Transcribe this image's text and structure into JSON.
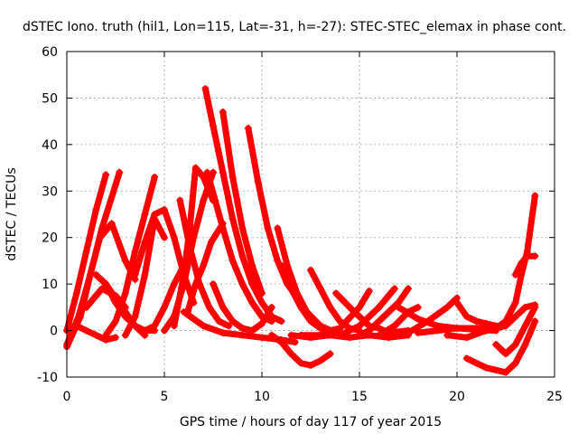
{
  "chart_data": {
    "type": "scatter",
    "title": "dSTEC Iono. truth (hil1, Lon=115, Lat=-31, h=-27): STEC-STEC_elemax in phase cont.",
    "xlabel": "GPS time / hours of day 117 of year 2015",
    "ylabel": "dSTEC  / TECUs",
    "xlim": [
      0,
      25
    ],
    "ylim": [
      -10,
      60
    ],
    "xticks": [
      0,
      5,
      10,
      15,
      20,
      25
    ],
    "yticks": [
      -10,
      0,
      10,
      20,
      30,
      40,
      50,
      60
    ],
    "grid": true,
    "color": "#ff0000",
    "marker": "plus",
    "series": [
      {
        "x": [
          0.0,
          0.5,
          1.0,
          1.5,
          2.0
        ],
        "y": [
          0.0,
          8.0,
          17.0,
          26.0,
          33.5
        ]
      },
      {
        "x": [
          0.0,
          0.6,
          1.2,
          1.8,
          2.7
        ],
        "y": [
          -3.0,
          3.0,
          12.0,
          22.0,
          34.0
        ]
      },
      {
        "x": [
          0.0,
          0.7,
          1.2,
          1.7,
          2.3,
          3.0,
          3.5
        ],
        "y": [
          -3.5,
          3.0,
          12.0,
          20.0,
          23.0,
          15.0,
          11.0
        ]
      },
      {
        "x": [
          1.5,
          2.0,
          2.5,
          3.0,
          3.5,
          4.0
        ],
        "y": [
          12.0,
          10.0,
          7.0,
          4.0,
          1.0,
          -1.0
        ]
      },
      {
        "x": [
          2.0,
          2.5,
          3.0,
          3.5,
          4.0,
          4.5
        ],
        "y": [
          10.0,
          6.0,
          3.0,
          1.0,
          0.0,
          0.0
        ]
      },
      {
        "x": [
          0.0,
          0.5,
          1.0,
          1.5,
          2.0,
          2.5
        ],
        "y": [
          0.0,
          1.0,
          0.0,
          -1.0,
          -2.0,
          -1.5
        ]
      },
      {
        "x": [
          1.0,
          1.8,
          2.5,
          3.0
        ],
        "y": [
          5.0,
          9.0,
          7.5,
          5.0
        ]
      },
      {
        "x": [
          2.0,
          2.5,
          3.0,
          3.5,
          4.0,
          4.5
        ],
        "y": [
          -1.0,
          2.0,
          8.0,
          17.0,
          25.0,
          33.0
        ]
      },
      {
        "x": [
          3.0,
          3.5,
          4.0,
          4.5,
          5.0
        ],
        "y": [
          -1.0,
          3.0,
          12.0,
          24.0,
          20.0
        ]
      },
      {
        "x": [
          3.5,
          4.0,
          4.5,
          5.0,
          5.5,
          6.0,
          6.5
        ],
        "y": [
          12.0,
          19.0,
          25.0,
          26.0,
          20.0,
          12.0,
          6.0
        ]
      },
      {
        "x": [
          4.0,
          4.5,
          5.0,
          5.5,
          6.0
        ],
        "y": [
          0.0,
          1.0,
          5.0,
          10.0,
          14.0
        ]
      },
      {
        "x": [
          5.0,
          5.5,
          6.0,
          6.5,
          7.0,
          7.5
        ],
        "y": [
          0.0,
          3.0,
          10.0,
          20.0,
          28.0,
          34.0
        ]
      },
      {
        "x": [
          5.5,
          6.0,
          6.3,
          6.6,
          7.0,
          7.5
        ],
        "y": [
          1.0,
          12.0,
          22.0,
          35.0,
          33.0,
          28.0
        ]
      },
      {
        "x": [
          5.8,
          6.3,
          6.8,
          7.3,
          7.8,
          8.3
        ],
        "y": [
          28.0,
          18.0,
          10.0,
          5.0,
          2.0,
          1.0
        ]
      },
      {
        "x": [
          6.2,
          6.6,
          7.0,
          7.4,
          8.0
        ],
        "y": [
          4.0,
          10.0,
          14.0,
          19.0,
          23.0
        ]
      },
      {
        "x": [
          7.1,
          7.5,
          8.0,
          8.5,
          9.0,
          9.5,
          10.0,
          10.5,
          11.0
        ],
        "y": [
          52.0,
          44.0,
          34.0,
          24.0,
          16.0,
          10.0,
          6.0,
          3.0,
          2.0
        ]
      },
      {
        "x": [
          7.2,
          7.6,
          8.0,
          8.5,
          9.0,
          9.5,
          10.0,
          10.5
        ],
        "y": [
          34.0,
          28.0,
          22.0,
          15.0,
          10.0,
          6.0,
          3.0,
          2.0
        ]
      },
      {
        "x": [
          8.0,
          8.5,
          9.0,
          9.5,
          10.0
        ],
        "y": [
          47.0,
          33.0,
          22.0,
          14.0,
          8.0
        ]
      },
      {
        "x": [
          9.3,
          9.8,
          10.3,
          10.8,
          11.3,
          12.0
        ],
        "y": [
          43.5,
          32.0,
          22.0,
          15.0,
          10.0,
          6.0
        ]
      },
      {
        "x": [
          7.5,
          8.0,
          8.5,
          9.0,
          9.5,
          10.0,
          10.5
        ],
        "y": [
          10.0,
          5.0,
          2.0,
          0.5,
          0.0,
          1.5,
          5.0
        ]
      },
      {
        "x": [
          6.0,
          7.0,
          8.0,
          9.0,
          10.0,
          11.0,
          11.7
        ],
        "y": [
          4.0,
          1.0,
          -0.5,
          -1.0,
          -1.5,
          -2.0,
          -2.5
        ]
      },
      {
        "x": [
          10.5,
          11.0,
          11.5,
          12.0,
          12.5,
          13.0,
          13.5
        ],
        "y": [
          -1.0,
          -2.5,
          -5.0,
          -7.0,
          -7.5,
          -6.5,
          -5.0
        ]
      },
      {
        "x": [
          10.8,
          11.3,
          11.8,
          12.3,
          13.0,
          13.8
        ],
        "y": [
          22.0,
          14.0,
          8.0,
          4.0,
          1.0,
          -0.5
        ]
      },
      {
        "x": [
          11.0,
          11.5,
          12.0,
          12.5,
          13.0,
          13.5,
          14.0
        ],
        "y": [
          14.0,
          9.0,
          5.0,
          2.0,
          0.5,
          0.0,
          0.5
        ]
      },
      {
        "x": [
          12.5,
          13.0,
          13.5,
          14.0,
          14.5,
          15.0
        ],
        "y": [
          13.0,
          9.0,
          5.0,
          2.0,
          0.5,
          0.0
        ]
      },
      {
        "x": [
          11.5,
          12.5,
          13.5,
          14.5,
          15.5,
          16.5,
          17.5
        ],
        "y": [
          -1.0,
          -1.5,
          -1.0,
          -1.5,
          -1.0,
          -1.5,
          -1.0
        ]
      },
      {
        "x": [
          12.0,
          13.0,
          14.0,
          15.0,
          15.5
        ],
        "y": [
          -1.0,
          -1.0,
          0.5,
          5.0,
          8.5
        ]
      },
      {
        "x": [
          13.8,
          14.5,
          15.5,
          16.0,
          16.5,
          17.5
        ],
        "y": [
          8.0,
          5.0,
          1.0,
          0.5,
          -0.5,
          0.0
        ]
      },
      {
        "x": [
          14.0,
          15.0,
          16.0,
          16.8
        ],
        "y": [
          -1.0,
          1.0,
          5.0,
          9.0
        ]
      },
      {
        "x": [
          15.0,
          15.5,
          16.0,
          16.5,
          17.0,
          17.5
        ],
        "y": [
          -1.0,
          0.0,
          2.0,
          4.0,
          6.0,
          9.0
        ]
      },
      {
        "x": [
          16.0,
          16.8,
          17.5,
          18.0
        ],
        "y": [
          -1.0,
          1.0,
          4.0,
          5.0
        ]
      },
      {
        "x": [
          16.5,
          17.5,
          18.5,
          19.5,
          20.0
        ],
        "y": [
          -1.0,
          -0.5,
          2.0,
          5.0,
          7.0
        ]
      },
      {
        "x": [
          17.0,
          18.0,
          19.0,
          20.0,
          21.0,
          22.0
        ],
        "y": [
          5.0,
          2.5,
          1.0,
          0.5,
          0.2,
          0.0
        ]
      },
      {
        "x": [
          18.0,
          19.0,
          20.0,
          21.0,
          22.0
        ],
        "y": [
          -0.5,
          0.0,
          0.5,
          0.5,
          0.0
        ]
      },
      {
        "x": [
          20.0,
          20.5,
          21.0,
          21.5,
          22.0
        ],
        "y": [
          6.0,
          3.0,
          2.0,
          1.5,
          1.0
        ]
      },
      {
        "x": [
          19.5,
          20.5,
          21.5,
          22.5,
          23.0,
          23.5,
          24.0
        ],
        "y": [
          -1.0,
          -1.5,
          0.0,
          1.0,
          3.0,
          5.0,
          5.5
        ]
      },
      {
        "x": [
          21.5,
          22.0,
          22.5,
          23.0,
          23.3,
          23.6,
          24.0
        ],
        "y": [
          0.0,
          0.5,
          2.0,
          6.0,
          12.0,
          17.0,
          29.0
        ]
      },
      {
        "x": [
          22.0,
          22.5,
          23.0,
          23.5,
          24.0
        ],
        "y": [
          -3.0,
          -5.0,
          -3.0,
          1.0,
          5.0
        ]
      },
      {
        "x": [
          23.0,
          23.3,
          23.6,
          24.0
        ],
        "y": [
          12.0,
          14.5,
          16.0,
          16.0
        ]
      },
      {
        "x": [
          20.5,
          21.0,
          21.5,
          22.0,
          22.5,
          23.0,
          23.5,
          24.0
        ],
        "y": [
          -6.0,
          -7.0,
          -8.0,
          -8.5,
          -9.0,
          -7.0,
          -3.0,
          2.0
        ]
      }
    ]
  }
}
